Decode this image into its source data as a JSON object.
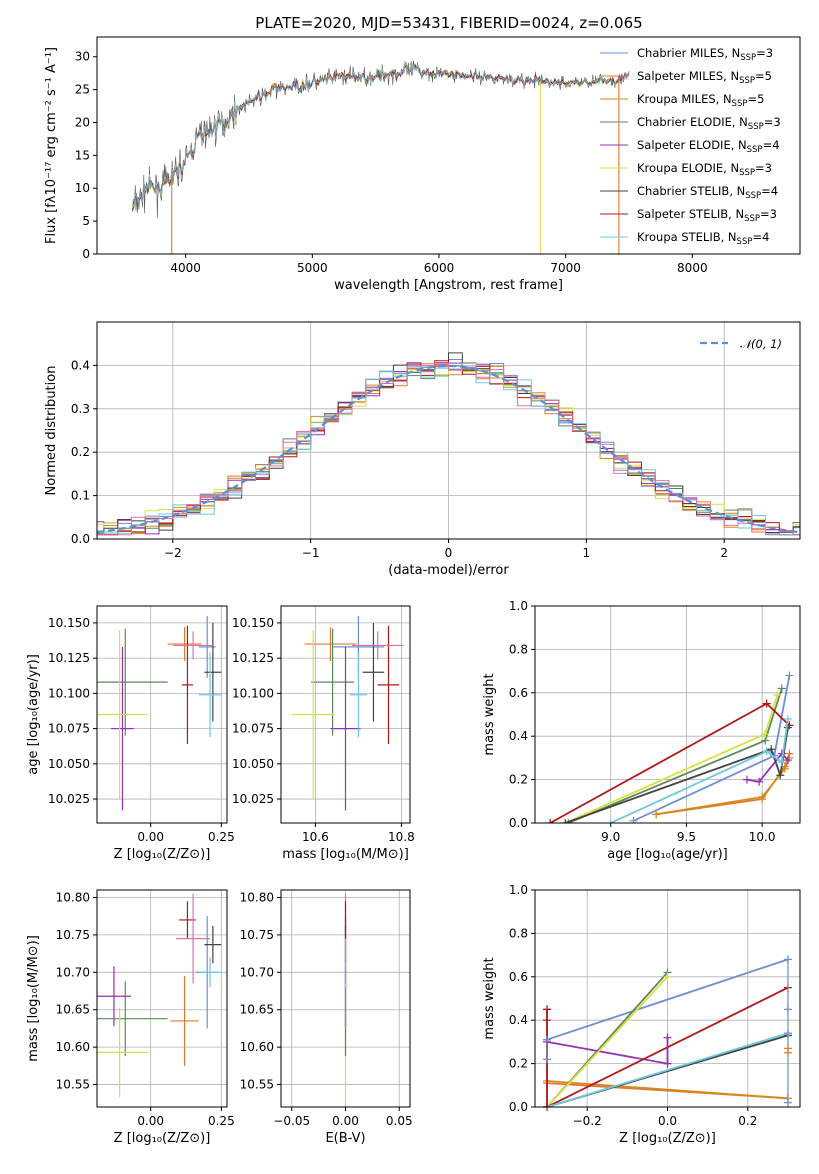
{
  "title": "PLATE=2020, MJD=53431, FIBERID=0024, z=0.065",
  "colors": {
    "Chabrier MILES": "#6a8fd8",
    "Salpeter MILES": "#e07a30",
    "Kroupa MILES": "#d58a1e",
    "Chabrier ELODIE": "#5a8a5a",
    "Salpeter ELODIE": "#9a30b8",
    "Kroupa ELODIE": "#d9e040",
    "Chabrier STELIB": "#444444",
    "Salpeter STELIB": "#b01818",
    "Kroupa STELIB": "#70c8e0",
    "pink": "#e070a8",
    "normal": "#5b8fd8"
  },
  "chart_data": [
    {
      "type": "line",
      "title": "PLATE=2020, MJD=53431, FIBERID=0024, z=0.065",
      "xlabel": "wavelength [Angstrom, rest frame]",
      "ylabel": "Flux [fλ10⁻¹⁷ erg cm⁻² s⁻¹ A⁻¹]",
      "xlim": [
        3300,
        8850
      ],
      "ylim": [
        0,
        33
      ],
      "xticks": [
        4000,
        5000,
        6000,
        7000,
        8000
      ],
      "yticks": [
        0,
        5,
        10,
        15,
        20,
        25,
        30
      ],
      "legend_position": "top-right",
      "legend": [
        {
          "main": "Chabrier MILES, N",
          "sub": "SSP",
          "eq": "=3",
          "color": "#6a8fd8"
        },
        {
          "main": "Salpeter MILES, N",
          "sub": "SSP",
          "eq": "=5",
          "color": "#e07a30"
        },
        {
          "main": "Kroupa MILES, N",
          "sub": "SSP",
          "eq": "=5",
          "color": "#d58a1e"
        },
        {
          "main": "Chabrier ELODIE, N",
          "sub": "SSP",
          "eq": "=3",
          "color": "#5a8a5a"
        },
        {
          "main": "Salpeter ELODIE, N",
          "sub": "SSP",
          "eq": "=4",
          "color": "#9a30b8"
        },
        {
          "main": "Kroupa ELODIE, N",
          "sub": "SSP",
          "eq": "=3",
          "color": "#d9e040"
        },
        {
          "main": "Chabrier STELIB, N",
          "sub": "SSP",
          "eq": "=4",
          "color": "#444444"
        },
        {
          "main": "Salpeter STELIB, N",
          "sub": "SSP",
          "eq": "=3",
          "color": "#b01818"
        },
        {
          "main": "Kroupa STELIB, N",
          "sub": "SSP",
          "eq": "=4",
          "color": "#70c8e0"
        }
      ],
      "continuum": {
        "x": [
          3580,
          3700,
          3800,
          3900,
          4000,
          4100,
          4200,
          4300,
          4400,
          4500,
          4700,
          5000,
          5200,
          5500,
          5800,
          6000,
          6300,
          6600,
          7000,
          7400,
          7500
        ],
        "y": [
          7,
          10,
          10,
          12,
          14,
          18,
          19,
          20,
          22,
          23,
          25,
          26,
          27,
          27,
          28,
          27.5,
          27,
          26.5,
          26,
          26.5,
          27
        ]
      },
      "dropouts": [
        3890,
        6800,
        7420
      ]
    },
    {
      "type": "step",
      "xlabel": "(data-model)/error",
      "ylabel": "Normed distribution",
      "xlim": [
        -2.55,
        2.55
      ],
      "ylim": [
        0,
        0.5
      ],
      "xticks": [
        -2,
        -1,
        0,
        1,
        2
      ],
      "yticks": [
        0.0,
        0.1,
        0.2,
        0.3,
        0.4
      ],
      "legend": "𝒩(0, 1)",
      "legend_position": "top-right"
    },
    {
      "type": "errorbar",
      "xlabel": "Z [log₁₀(Z/Z⊙)]",
      "ylabel": "age  [log₁₀(age/yr)]",
      "xlim": [
        -0.19,
        0.27
      ],
      "ylim": [
        10.008,
        10.162
      ],
      "xticks": [
        -0.25,
        0.0,
        0.25
      ],
      "yticks": [
        10.025,
        10.05,
        10.075,
        10.1,
        10.125,
        10.15
      ],
      "points": [
        {
          "c": "Chabrier MILES",
          "x": 0.2,
          "xe": 0.03,
          "y": 10.133,
          "ye": 0.022
        },
        {
          "c": "Salpeter MILES",
          "x": 0.12,
          "xe": 0.06,
          "y": 10.135,
          "ye": 0.012
        },
        {
          "c": "Chabrier ELODIE",
          "x": -0.09,
          "xe": 0.15,
          "y": 10.108,
          "ye": 0.038
        },
        {
          "c": "Salpeter ELODIE",
          "x": -0.1,
          "xe": 0.04,
          "y": 10.075,
          "ye": 0.058
        },
        {
          "c": "Kroupa ELODIE",
          "x": -0.11,
          "xe": 0.1,
          "y": 10.085,
          "ye": 0.06
        },
        {
          "c": "Chabrier STELIB",
          "x": 0.22,
          "xe": 0.03,
          "y": 10.115,
          "ye": 0.035
        },
        {
          "c": "Salpeter STELIB",
          "x": 0.13,
          "xe": 0.02,
          "y": 10.106,
          "ye": 0.042
        },
        {
          "c": "Kroupa STELIB",
          "x": 0.21,
          "xe": 0.04,
          "y": 10.099,
          "ye": 0.03
        },
        {
          "c": "pink",
          "x": 0.15,
          "xe": 0.07,
          "y": 10.134,
          "ye": 0.01
        }
      ]
    },
    {
      "type": "errorbar",
      "xlabel": "mass [log₁₀(M/M⊙)]",
      "xlim": [
        10.52,
        10.82
      ],
      "ylim": [
        10.008,
        10.162
      ],
      "xticks": [
        10.6,
        10.8
      ],
      "yticks": [
        10.025,
        10.05,
        10.075,
        10.1,
        10.125,
        10.15
      ],
      "points": [
        {
          "c": "Chabrier MILES",
          "x": 10.7,
          "xe": 0.06,
          "y": 10.133,
          "ye": 0.022
        },
        {
          "c": "Salpeter MILES",
          "x": 10.635,
          "xe": 0.06,
          "y": 10.135,
          "ye": 0.012
        },
        {
          "c": "Chabrier ELODIE",
          "x": 10.64,
          "xe": 0.05,
          "y": 10.108,
          "ye": 0.038
        },
        {
          "c": "Salpeter ELODIE",
          "x": 10.67,
          "xe": 0.035,
          "y": 10.075,
          "ye": 0.058
        },
        {
          "c": "Kroupa ELODIE",
          "x": 10.595,
          "xe": 0.05,
          "y": 10.085,
          "ye": 0.06
        },
        {
          "c": "Chabrier STELIB",
          "x": 10.735,
          "xe": 0.025,
          "y": 10.115,
          "ye": 0.035
        },
        {
          "c": "Salpeter STELIB",
          "x": 10.77,
          "xe": 0.025,
          "y": 10.106,
          "ye": 0.042
        },
        {
          "c": "Kroupa STELIB",
          "x": 10.7,
          "xe": 0.02,
          "y": 10.099,
          "ye": 0.03
        },
        {
          "c": "pink",
          "x": 10.745,
          "xe": 0.06,
          "y": 10.134,
          "ye": 0.01
        }
      ]
    },
    {
      "type": "line",
      "xlabel": "age  [log₁₀(age/yr)]",
      "ylabel": "mass weight",
      "xlim": [
        8.5,
        10.25
      ],
      "ylim": [
        0,
        1.0
      ],
      "xticks": [
        9.0,
        9.5,
        10.0
      ],
      "yticks": [
        0.0,
        0.2,
        0.4,
        0.6,
        0.8,
        1.0
      ],
      "series": [
        {
          "c": "Chabrier MILES",
          "x": [
            9.15,
            10.08,
            10.18
          ],
          "y": [
            0.01,
            0.31,
            0.68
          ]
        },
        {
          "c": "Salpeter MILES",
          "x": [
            9.3,
            10.0,
            10.15,
            10.18
          ],
          "y": [
            0.04,
            0.11,
            0.26,
            0.32
          ]
        },
        {
          "c": "Kroupa MILES",
          "x": [
            9.3,
            10.0,
            10.15,
            10.18
          ],
          "y": [
            0.04,
            0.12,
            0.25,
            0.3
          ]
        },
        {
          "c": "Chabrier ELODIE",
          "x": [
            8.72,
            10.02,
            10.13
          ],
          "y": [
            0.0,
            0.38,
            0.62
          ]
        },
        {
          "c": "Salpeter ELODIE",
          "x": [
            9.9,
            9.98,
            10.13,
            10.17
          ],
          "y": [
            0.2,
            0.19,
            0.32,
            0.29
          ]
        },
        {
          "c": "Kroupa ELODIE",
          "x": [
            8.7,
            10.02,
            10.1
          ],
          "y": [
            0.0,
            0.41,
            0.59
          ]
        },
        {
          "c": "Chabrier STELIB",
          "x": [
            8.7,
            10.06,
            10.12,
            10.17
          ],
          "y": [
            0.0,
            0.34,
            0.22,
            0.44
          ]
        },
        {
          "c": "Salpeter STELIB",
          "x": [
            8.6,
            10.03,
            10.18
          ],
          "y": [
            0.0,
            0.55,
            0.45
          ]
        },
        {
          "c": "Kroupa STELIB",
          "x": [
            9.0,
            10.03,
            10.13,
            10.17
          ],
          "y": [
            0.0,
            0.33,
            0.28,
            0.48
          ]
        }
      ]
    },
    {
      "type": "errorbar",
      "xlabel": "Z [log₁₀(Z/Z⊙)]",
      "ylabel": "mass [log₁₀(M/M⊙)]",
      "xlim": [
        -0.19,
        0.27
      ],
      "ylim": [
        10.52,
        10.81
      ],
      "xticks": [
        -0.25,
        0.0,
        0.25
      ],
      "yticks": [
        10.55,
        10.6,
        10.65,
        10.7,
        10.75,
        10.8
      ],
      "points": [
        {
          "c": "Chabrier MILES",
          "x": 0.2,
          "xe": 0.04,
          "y": 10.7,
          "ye": 0.075
        },
        {
          "c": "Salpeter MILES",
          "x": 0.12,
          "xe": 0.05,
          "y": 10.635,
          "ye": 0.06
        },
        {
          "c": "Chabrier ELODIE",
          "x": -0.09,
          "xe": 0.15,
          "y": 10.638,
          "ye": 0.05
        },
        {
          "c": "Salpeter ELODIE",
          "x": -0.13,
          "xe": 0.06,
          "y": 10.668,
          "ye": 0.04
        },
        {
          "c": "Kroupa ELODIE",
          "x": -0.11,
          "xe": 0.1,
          "y": 10.593,
          "ye": 0.06
        },
        {
          "c": "Chabrier STELIB",
          "x": 0.22,
          "xe": 0.03,
          "y": 10.737,
          "ye": 0.025
        },
        {
          "c": "Salpeter STELIB",
          "x": 0.13,
          "xe": 0.03,
          "y": 10.77,
          "ye": 0.025
        },
        {
          "c": "Kroupa STELIB",
          "x": 0.21,
          "xe": 0.04,
          "y": 10.7,
          "ye": 0.02
        },
        {
          "c": "pink",
          "x": 0.15,
          "xe": 0.06,
          "y": 10.745,
          "ye": 0.06
        }
      ]
    },
    {
      "type": "errorbar",
      "xlabel": "E(B-V)",
      "xlim": [
        -0.06,
        0.06
      ],
      "ylim": [
        10.52,
        10.81
      ],
      "xticks": [
        -0.05,
        0.0,
        0.05
      ],
      "yticks": [
        10.55,
        10.6,
        10.65,
        10.7,
        10.75,
        10.8
      ],
      "points": [
        {
          "c": "Kroupa ELODIE",
          "x": 0.0,
          "xe": 0.0,
          "y": 10.59,
          "ye": 0.06
        },
        {
          "c": "Chabrier ELODIE",
          "x": 0.0,
          "xe": 0.0,
          "y": 10.638,
          "ye": 0.05
        },
        {
          "c": "Salpeter ELODIE",
          "x": 0.0,
          "xe": 0.0,
          "y": 10.668,
          "ye": 0.04
        },
        {
          "c": "Chabrier MILES",
          "x": 0.0,
          "xe": 0.0,
          "y": 10.7,
          "ye": 0.075
        },
        {
          "c": "Kroupa STELIB",
          "x": 0.0,
          "xe": 0.0,
          "y": 10.7,
          "ye": 0.02
        },
        {
          "c": "Chabrier STELIB",
          "x": 0.0,
          "xe": 0.0,
          "y": 10.737,
          "ye": 0.025
        },
        {
          "c": "pink",
          "x": 0.0,
          "xe": 0.0,
          "y": 10.745,
          "ye": 0.06
        },
        {
          "c": "Salpeter STELIB",
          "x": 0.0,
          "xe": 0.0,
          "y": 10.77,
          "ye": 0.025
        }
      ]
    },
    {
      "type": "line",
      "xlabel": "Z [log₁₀(Z/Z⊙)]",
      "ylabel": "mass weight",
      "xlim": [
        -0.33,
        0.33
      ],
      "ylim": [
        0,
        1.0
      ],
      "xticks": [
        -0.2,
        0.0,
        0.2
      ],
      "yticks": [
        0.0,
        0.2,
        0.4,
        0.6,
        0.8,
        1.0
      ],
      "series": [
        {
          "c": "Chabrier MILES",
          "x": [
            -0.3,
            0.3
          ],
          "y": [
            0.31,
            0.68
          ]
        },
        {
          "c": "Salpeter MILES",
          "x": [
            -0.3,
            0.3
          ],
          "y": [
            0.11,
            0.04
          ]
        },
        {
          "c": "Kroupa MILES",
          "x": [
            -0.3,
            0.3
          ],
          "y": [
            0.12,
            0.04
          ]
        },
        {
          "c": "Chabrier ELODIE",
          "x": [
            -0.3,
            0.0
          ],
          "y": [
            0.0,
            0.62
          ]
        },
        {
          "c": "Salpeter ELODIE",
          "x": [
            -0.3,
            0.0,
            0.0
          ],
          "y": [
            0.3,
            0.2,
            0.32
          ]
        },
        {
          "c": "Kroupa ELODIE",
          "x": [
            -0.3,
            0.0
          ],
          "y": [
            0.0,
            0.6
          ]
        },
        {
          "c": "Chabrier STELIB",
          "x": [
            -0.3,
            0.3
          ],
          "y": [
            0.0,
            0.33
          ]
        },
        {
          "c": "Salpeter STELIB",
          "x": [
            -0.3,
            -0.3,
            0.3
          ],
          "y": [
            0.45,
            0.0,
            0.55
          ]
        },
        {
          "c": "Kroupa STELIB",
          "x": [
            -0.3,
            0.3
          ],
          "y": [
            0.0,
            0.34
          ]
        }
      ],
      "edge_marks": [
        {
          "c": "Salpeter STELIB",
          "x": -0.3,
          "y": [
            0.45,
            0.4,
            0.0
          ]
        },
        {
          "c": "Chabrier MILES",
          "x": -0.3,
          "y": [
            0.31,
            0.22
          ]
        },
        {
          "c": "Chabrier MILES",
          "x": 0.3,
          "y": [
            0.68,
            0.45,
            0.34,
            0.02
          ]
        },
        {
          "c": "Salpeter MILES",
          "x": 0.3,
          "y": [
            0.27,
            0.25
          ]
        },
        {
          "c": "Salpeter ELODIE",
          "x": 0.0,
          "y": [
            0.32,
            0.2
          ]
        }
      ]
    }
  ]
}
